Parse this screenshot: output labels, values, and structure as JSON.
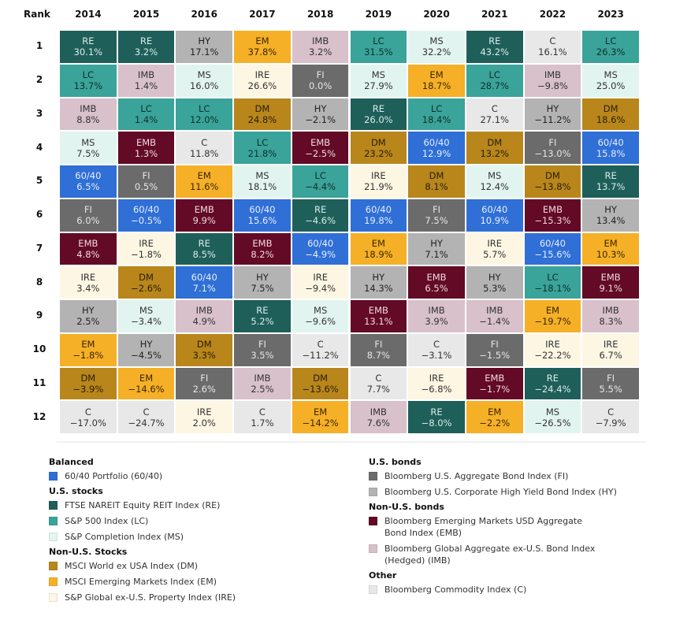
{
  "chart_data": {
    "type": "table",
    "title": "",
    "rank_header": "Rank",
    "years": [
      "2014",
      "2015",
      "2016",
      "2017",
      "2018",
      "2019",
      "2020",
      "2021",
      "2022",
      "2023"
    ],
    "ranks": [
      "1",
      "2",
      "3",
      "4",
      "5",
      "6",
      "7",
      "8",
      "9",
      "10",
      "11",
      "12"
    ],
    "columns": [
      [
        [
          "RE",
          "30.1%"
        ],
        [
          "LC",
          "13.7%"
        ],
        [
          "IMB",
          "8.8%"
        ],
        [
          "MS",
          "7.5%"
        ],
        [
          "60/40",
          "6.5%"
        ],
        [
          "FI",
          "6.0%"
        ],
        [
          "EMB",
          "4.8%"
        ],
        [
          "IRE",
          "3.4%"
        ],
        [
          "HY",
          "2.5%"
        ],
        [
          "EM",
          "−1.8%"
        ],
        [
          "DM",
          "−3.9%"
        ],
        [
          "C",
          "−17.0%"
        ]
      ],
      [
        [
          "RE",
          "3.2%"
        ],
        [
          "IMB",
          "1.4%"
        ],
        [
          "LC",
          "1.4%"
        ],
        [
          "EMB",
          "1.3%"
        ],
        [
          "FI",
          "0.5%"
        ],
        [
          "60/40",
          "−0.5%"
        ],
        [
          "IRE",
          "−1.8%"
        ],
        [
          "DM",
          "−2.6%"
        ],
        [
          "MS",
          "−3.4%"
        ],
        [
          "HY",
          "−4.5%"
        ],
        [
          "EM",
          "−14.6%"
        ],
        [
          "C",
          "−24.7%"
        ]
      ],
      [
        [
          "HY",
          "17.1%"
        ],
        [
          "MS",
          "16.0%"
        ],
        [
          "LC",
          "12.0%"
        ],
        [
          "C",
          "11.8%"
        ],
        [
          "EM",
          "11.6%"
        ],
        [
          "EMB",
          "9.9%"
        ],
        [
          "RE",
          "8.5%"
        ],
        [
          "60/40",
          "7.1%"
        ],
        [
          "IMB",
          "4.9%"
        ],
        [
          "DM",
          "3.3%"
        ],
        [
          "FI",
          "2.6%"
        ],
        [
          "IRE",
          "2.0%"
        ]
      ],
      [
        [
          "EM",
          "37.8%"
        ],
        [
          "IRE",
          "26.6%"
        ],
        [
          "DM",
          "24.8%"
        ],
        [
          "LC",
          "21.8%"
        ],
        [
          "MS",
          "18.1%"
        ],
        [
          "60/40",
          "15.6%"
        ],
        [
          "EMB",
          "8.2%"
        ],
        [
          "HY",
          "7.5%"
        ],
        [
          "RE",
          "5.2%"
        ],
        [
          "FI",
          "3.5%"
        ],
        [
          "IMB",
          "2.5%"
        ],
        [
          "C",
          "1.7%"
        ]
      ],
      [
        [
          "IMB",
          "3.2%"
        ],
        [
          "FI",
          "0.0%"
        ],
        [
          "HY",
          "−2.1%"
        ],
        [
          "EMB",
          "−2.5%"
        ],
        [
          "LC",
          "−4.4%"
        ],
        [
          "RE",
          "−4.6%"
        ],
        [
          "60/40",
          "−4.9%"
        ],
        [
          "IRE",
          "−9.4%"
        ],
        [
          "MS",
          "−9.6%"
        ],
        [
          "C",
          "−11.2%"
        ],
        [
          "DM",
          "−13.6%"
        ],
        [
          "EM",
          "−14.2%"
        ]
      ],
      [
        [
          "LC",
          "31.5%"
        ],
        [
          "MS",
          "27.9%"
        ],
        [
          "RE",
          "26.0%"
        ],
        [
          "DM",
          "23.2%"
        ],
        [
          "IRE",
          "21.9%"
        ],
        [
          "60/40",
          "19.8%"
        ],
        [
          "EM",
          "18.9%"
        ],
        [
          "HY",
          "14.3%"
        ],
        [
          "EMB",
          "13.1%"
        ],
        [
          "FI",
          "8.7%"
        ],
        [
          "C",
          "7.7%"
        ],
        [
          "IMB",
          "7.6%"
        ]
      ],
      [
        [
          "MS",
          "32.2%"
        ],
        [
          "EM",
          "18.7%"
        ],
        [
          "LC",
          "18.4%"
        ],
        [
          "60/40",
          "12.9%"
        ],
        [
          "DM",
          "8.1%"
        ],
        [
          "FI",
          "7.5%"
        ],
        [
          "HY",
          "7.1%"
        ],
        [
          "EMB",
          "6.5%"
        ],
        [
          "IMB",
          "3.9%"
        ],
        [
          "C",
          "−3.1%"
        ],
        [
          "IRE",
          "−6.8%"
        ],
        [
          "RE",
          "−8.0%"
        ]
      ],
      [
        [
          "RE",
          "43.2%"
        ],
        [
          "LC",
          "28.7%"
        ],
        [
          "C",
          "27.1%"
        ],
        [
          "DM",
          "13.2%"
        ],
        [
          "MS",
          "12.4%"
        ],
        [
          "60/40",
          "10.9%"
        ],
        [
          "IRE",
          "5.7%"
        ],
        [
          "HY",
          "5.3%"
        ],
        [
          "IMB",
          "−1.4%"
        ],
        [
          "FI",
          "−1.5%"
        ],
        [
          "EMB",
          "−1.7%"
        ],
        [
          "EM",
          "−2.2%"
        ]
      ],
      [
        [
          "C",
          "16.1%"
        ],
        [
          "IMB",
          "−9.8%"
        ],
        [
          "HY",
          "−11.2%"
        ],
        [
          "FI",
          "−13.0%"
        ],
        [
          "DM",
          "−13.8%"
        ],
        [
          "EMB",
          "−15.3%"
        ],
        [
          "60/40",
          "−15.6%"
        ],
        [
          "LC",
          "−18.1%"
        ],
        [
          "EM",
          "−19.7%"
        ],
        [
          "IRE",
          "−22.2%"
        ],
        [
          "RE",
          "−24.4%"
        ],
        [
          "MS",
          "−26.5%"
        ]
      ],
      [
        [
          "LC",
          "26.3%"
        ],
        [
          "MS",
          "25.0%"
        ],
        [
          "DM",
          "18.6%"
        ],
        [
          "60/40",
          "15.8%"
        ],
        [
          "RE",
          "13.7%"
        ],
        [
          "HY",
          "13.4%"
        ],
        [
          "EM",
          "10.3%"
        ],
        [
          "EMB",
          "9.1%"
        ],
        [
          "IMB",
          "8.3%"
        ],
        [
          "IRE",
          "6.7%"
        ],
        [
          "FI",
          "5.5%"
        ],
        [
          "C",
          "−7.9%"
        ]
      ]
    ],
    "asset_colors": {
      "60/40": {
        "bg": "#2f6fd6",
        "fg": "#e8effb"
      },
      "RE": {
        "bg": "#1f5f5a",
        "fg": "#d9ece9"
      },
      "LC": {
        "bg": "#3aa39a",
        "fg": "#0f2f2c"
      },
      "MS": {
        "bg": "#e2f4f0",
        "fg": "#333333"
      },
      "DM": {
        "bg": "#b8861b",
        "fg": "#2a1d05"
      },
      "EM": {
        "bg": "#f5b027",
        "fg": "#3a2600"
      },
      "IRE": {
        "bg": "#fdf6e3",
        "fg": "#333333"
      },
      "FI": {
        "bg": "#6b6b6b",
        "fg": "#e6e6e6"
      },
      "HY": {
        "bg": "#b3b3b3",
        "fg": "#222222"
      },
      "EMB": {
        "bg": "#620a26",
        "fg": "#f1d9e0"
      },
      "IMB": {
        "bg": "#d8c1cb",
        "fg": "#333333"
      },
      "C": {
        "bg": "#e8e8e8",
        "fg": "#333333"
      }
    }
  },
  "legend": {
    "left": [
      {
        "title": "Balanced",
        "items": [
          {
            "code": "60/40",
            "label": "60/40 Portfolio (60/40)"
          }
        ]
      },
      {
        "title": "U.S. stocks",
        "items": [
          {
            "code": "RE",
            "label": "FTSE NAREIT Equity REIT Index (RE)"
          },
          {
            "code": "LC",
            "label": "S&P 500 Index (LC)"
          },
          {
            "code": "MS",
            "label": "S&P Completion Index (MS)"
          }
        ]
      },
      {
        "title": "Non-U.S. Stocks",
        "items": [
          {
            "code": "DM",
            "label": "MSCI World ex USA Index (DM)"
          },
          {
            "code": "EM",
            "label": "MSCI Emerging Markets Index (EM)"
          },
          {
            "code": "IRE",
            "label": "S&P Global ex-U.S. Property Index (IRE)"
          }
        ]
      }
    ],
    "right": [
      {
        "title": "U.S. bonds",
        "items": [
          {
            "code": "FI",
            "label": "Bloomberg U.S. Aggregate Bond Index (FI)"
          },
          {
            "code": "HY",
            "label": "Bloomberg U.S. Corporate High Yield Bond Index (HY)"
          }
        ]
      },
      {
        "title": "Non-U.S. bonds",
        "items": [
          {
            "code": "EMB",
            "label": "Bloomberg Emerging Markets USD Aggregate Bond Index (EMB)"
          },
          {
            "code": "IMB",
            "label": "Bloomberg Global Aggregate ex-U.S. Bond Index (Hedged) (IMB)"
          }
        ]
      },
      {
        "title": "Other",
        "items": [
          {
            "code": "C",
            "label": "Bloomberg Commodity Index (C)"
          }
        ]
      }
    ]
  }
}
